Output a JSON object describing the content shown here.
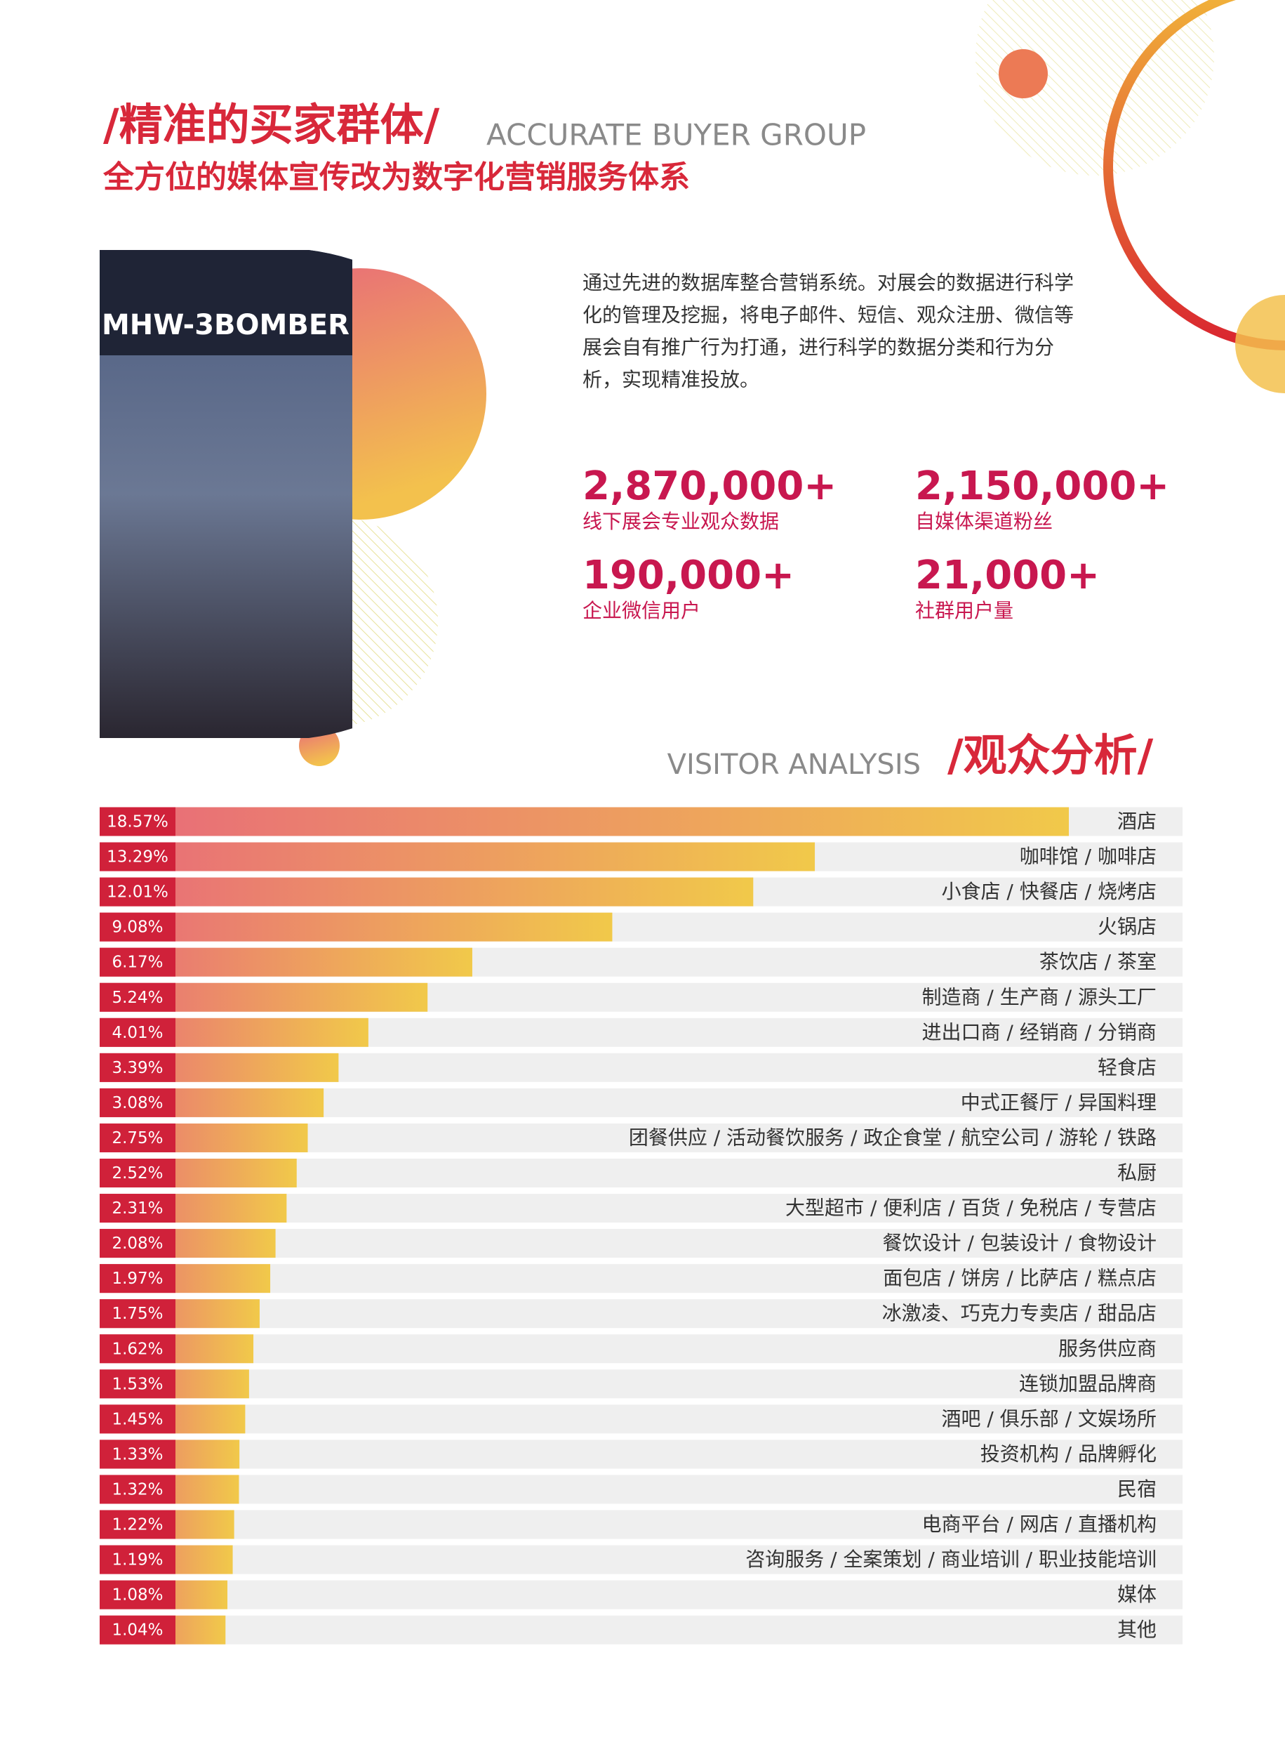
{
  "header": {
    "title": "/精准的买家群体/",
    "title_en": "ACCURATE BUYER GROUP",
    "subtitle": "全方位的媒体宣传改为数字化营销服务体系"
  },
  "photo": {
    "sign": "MHW-3BOMBER"
  },
  "intro": {
    "lines": [
      "通过先进的数据库整合营销系统。对展会的数据进行科学",
      "化的管理及挖掘，将电子邮件、短信、观众注册、微信等",
      "展会自有推广行为打通，进行科学的数据分类和行为分",
      "析，实现精准投放。"
    ]
  },
  "stats": [
    {
      "value": "2,870,000+",
      "label": "线下展会专业观众数据"
    },
    {
      "value": "2,150,000+",
      "label": "自媒体渠道粉丝"
    },
    {
      "value": "190,000+",
      "label": "企业微信用户"
    },
    {
      "value": "21,000+",
      "label": "社群用户量"
    }
  ],
  "section": {
    "title_en": "VISITOR ANALYSIS",
    "title": "/观众分析/"
  },
  "chart_data": {
    "type": "bar",
    "orientation": "horizontal",
    "colors": [
      "#e8697a",
      "#f1c94a"
    ],
    "label_box_color": "#d0213a",
    "track_color": "#efefef",
    "categories": [
      "酒店",
      "咖啡馆 / 咖啡店",
      "小食店 / 快餐店 / 烧烤店",
      "火锅店",
      "茶饮店 / 茶室",
      "制造商 / 生产商 / 源头工厂",
      "进出口商 / 经销商 / 分销商",
      "轻食店",
      "中式正餐厅 / 异国料理",
      "团餐供应 / 活动餐饮服务 / 政企食堂 / 航空公司 / 游轮 / 铁路",
      "私厨",
      "大型超市 / 便利店 / 百货 / 免税店 / 专营店",
      "餐饮设计 / 包装设计 / 食物设计",
      "面包店 / 饼房 / 比萨店 / 糕点店",
      "冰激凌、巧克力专卖店 / 甜品店",
      "服务供应商",
      "连锁加盟品牌商",
      "酒吧 / 俱乐部 / 文娱场所",
      "投资机构 / 品牌孵化",
      "民宿",
      "电商平台 / 网店 / 直播机构",
      "咨询服务 / 全案策划 / 商业培训 / 职业技能培训",
      "媒体",
      "其他"
    ],
    "values": [
      18.57,
      13.29,
      12.01,
      9.08,
      6.17,
      5.24,
      4.01,
      3.39,
      3.08,
      2.75,
      2.52,
      2.31,
      2.08,
      1.97,
      1.75,
      1.62,
      1.53,
      1.45,
      1.33,
      1.32,
      1.22,
      1.19,
      1.08,
      1.04
    ],
    "value_labels": [
      "18.57%",
      "13.29%",
      "12.01%",
      "9.08%",
      "6.17%",
      "5.24%",
      "4.01%",
      "3.39%",
      "3.08%",
      "2.75%",
      "2.52%",
      "2.31%",
      "2.08%",
      "1.97%",
      "1.75%",
      "1.62%",
      "1.53%",
      "1.45%",
      "1.33%",
      "1.32%",
      "1.22%",
      "1.19%",
      "1.08%",
      "1.04%"
    ]
  }
}
